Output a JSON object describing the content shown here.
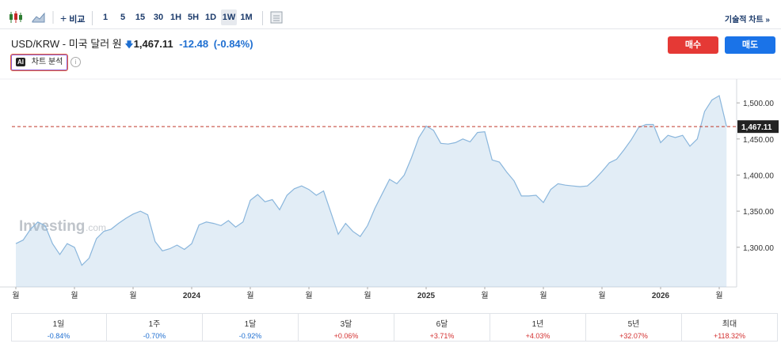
{
  "toolbar": {
    "compare": "비교",
    "intervals": [
      "1",
      "5",
      "15",
      "30",
      "1H",
      "5H",
      "1D",
      "1W",
      "1M"
    ],
    "technical_chart": "기술적 차트 »"
  },
  "header": {
    "title": "USD/KRW - 미국 달러 원",
    "price": "1,467.11",
    "change": "-12.48",
    "change_pct": "(-0.84%)"
  },
  "actions": {
    "buy": "매수",
    "sell": "매도"
  },
  "ai": {
    "badge": "AI",
    "label": "차트 분석"
  },
  "chart_data": {
    "type": "area",
    "watermark": "Investing",
    "watermark_suffix": ".com",
    "color": "#8ab6dc",
    "categories": [
      "월",
      null,
      null,
      null,
      null,
      null,
      null,
      null,
      "월",
      null,
      null,
      null,
      null,
      null,
      null,
      null,
      "월",
      null,
      null,
      null,
      null,
      null,
      null,
      null,
      "2024",
      null,
      null,
      null,
      null,
      null,
      null,
      null,
      "월",
      null,
      null,
      null,
      null,
      null,
      null,
      null,
      "월",
      null,
      null,
      null,
      null,
      null,
      null,
      null,
      "월",
      null,
      null,
      null,
      null,
      null,
      null,
      null,
      "2025",
      null,
      null,
      null,
      null,
      null,
      null,
      null,
      "월",
      null,
      null,
      null,
      null,
      null,
      null,
      null,
      "월",
      null,
      null,
      null,
      null,
      null,
      null,
      null,
      "월",
      null,
      null,
      null,
      null,
      null,
      null,
      null,
      "2026",
      null,
      null,
      null,
      null,
      null,
      null,
      null,
      "월",
      null
    ],
    "values": [
      1305,
      1310,
      1325,
      1335,
      1330,
      1305,
      1290,
      1305,
      1300,
      1275,
      1285,
      1312,
      1322,
      1325,
      1333,
      1340,
      1346,
      1350,
      1345,
      1308,
      1295,
      1298,
      1303,
      1297,
      1305,
      1331,
      1335,
      1333,
      1330,
      1337,
      1328,
      1335,
      1365,
      1373,
      1363,
      1366,
      1352,
      1372,
      1381,
      1385,
      1380,
      1372,
      1378,
      1348,
      1318,
      1333,
      1322,
      1315,
      1330,
      1354,
      1374,
      1394,
      1388,
      1400,
      1424,
      1452,
      1468,
      1462,
      1444,
      1443,
      1445,
      1450,
      1446,
      1459,
      1460,
      1421,
      1418,
      1404,
      1392,
      1371,
      1371,
      1372,
      1362,
      1380,
      1388,
      1386,
      1385,
      1384,
      1385,
      1394,
      1405,
      1417,
      1422,
      1435,
      1449,
      1466,
      1470,
      1470,
      1445,
      1455,
      1452,
      1455,
      1440,
      1450,
      1488,
      1504,
      1510,
      1467.11
    ],
    "ylim": [
      1245,
      1533
    ],
    "yticks": [
      {
        "value": 1300,
        "label": "1,300.00"
      },
      {
        "value": 1350,
        "label": "1,350.00"
      },
      {
        "value": 1400,
        "label": "1,400.00"
      },
      {
        "value": 1450,
        "label": "1,450.00"
      },
      {
        "value": 1500,
        "label": "1,500.00"
      }
    ],
    "last_price": {
      "value": 1467.11,
      "label": "1,467.11"
    }
  },
  "performance": [
    {
      "period": "1일",
      "change": "-0.84%"
    },
    {
      "period": "1주",
      "change": "-0.70%"
    },
    {
      "period": "1달",
      "change": "-0.92%"
    },
    {
      "period": "3달",
      "change": "+0.06%"
    },
    {
      "period": "6달",
      "change": "+3.71%"
    },
    {
      "period": "1년",
      "change": "+4.03%"
    },
    {
      "period": "5년",
      "change": "+32.07%"
    },
    {
      "period": "최대",
      "change": "+118.32%"
    }
  ]
}
